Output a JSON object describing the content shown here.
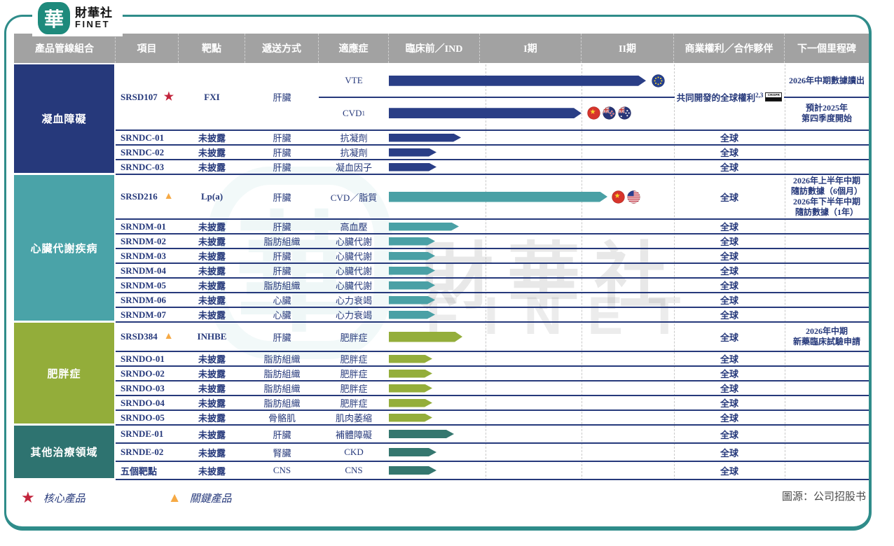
{
  "brand": {
    "logo_char": "華",
    "name_zh": "財華社",
    "name_en": "FINET"
  },
  "watermark": {
    "emblem_char": "華",
    "name_zh": "財華社",
    "name_en": "FINET"
  },
  "columns": [
    "產品管線組合",
    "項目",
    "靶點",
    "遞送方式",
    "適應症",
    "臨床前／IND",
    "I期",
    "II期",
    "商業權利／合作夥伴",
    "下一個里程碑"
  ],
  "colors": {
    "navy": "#26397b",
    "navy_arrow": "#2a3e86",
    "teal": "#4aa3a8",
    "teal_arrow": "#4aa0a5",
    "olive": "#93ad3a",
    "olive_arrow": "#94ae3b",
    "dark_teal": "#2e7370",
    "dark_teal_arrow": "#35776f",
    "header_gray": "#a2a2a2",
    "frame_teal": "#2f8c8a",
    "star_red": "#c2243c",
    "triangle_orange": "#f6a944"
  },
  "groups": [
    {
      "name": "凝血障礙",
      "color": "#26397b",
      "arrow_color": "#2a3e86",
      "rows": [
        {
          "type": "double",
          "project": "SRSD107",
          "marker": "star",
          "target": "FXI",
          "delivery": "肝臟",
          "subrows": [
            {
              "indication": "VTE",
              "sup": "",
              "arrow_len": 367,
              "flags": [
                "eu"
              ]
            },
            {
              "indication": "CVD",
              "sup": "1",
              "arrow_len": 275,
              "flags": [
                "cn",
                "nz",
                "au"
              ]
            }
          ],
          "rights": "共同開發的全球權利",
          "rights_sup": "2,3",
          "rights_logo": "CRISPR",
          "milestone_top": "2026年中期數據讀出",
          "milestone_bottom": "預計2025年\n第四季度開始"
        },
        {
          "type": "std",
          "project": "SRNDC-01",
          "marker": "",
          "target": "未披露",
          "delivery": "肝臟",
          "indication": "抗凝劑",
          "arrow_len": 103,
          "flags": [],
          "rights": "全球",
          "milestone": ""
        },
        {
          "type": "std",
          "project": "SRNDC-02",
          "marker": "",
          "target": "未披露",
          "delivery": "肝臟",
          "indication": "抗凝劑",
          "arrow_len": 68,
          "flags": [],
          "rights": "全球",
          "milestone": ""
        },
        {
          "type": "std",
          "project": "SRNDC-03",
          "marker": "",
          "target": "未披露",
          "delivery": "肝臟",
          "indication": "凝血因子",
          "arrow_len": 68,
          "flags": [],
          "rights": "全球",
          "milestone": ""
        }
      ]
    },
    {
      "name": "心臟代謝疾病",
      "color": "#4aa3a8",
      "arrow_color": "#4aa0a5",
      "rows": [
        {
          "type": "feature",
          "project": "SRSD216",
          "marker": "triangle",
          "target": "Lp(a)",
          "delivery": "肝臟",
          "indication": "CVD／脂質",
          "arrow_len": 312,
          "flags": [
            "cn",
            "us"
          ],
          "rights": "全球",
          "milestone": "2026年上半年中期\n隨訪數據（6個月）\n2026年下半年中期\n隨訪數據（1年）"
        },
        {
          "type": "std",
          "project": "SRNDM-01",
          "marker": "",
          "target": "未披露",
          "delivery": "肝臟",
          "indication": "高血壓",
          "arrow_len": 100,
          "flags": [],
          "rights": "全球",
          "milestone": ""
        },
        {
          "type": "std",
          "project": "SRNDM-02",
          "marker": "",
          "target": "未披露",
          "delivery": "脂肪組織",
          "indication": "心臟代謝",
          "arrow_len": 66,
          "flags": [],
          "rights": "全球",
          "milestone": ""
        },
        {
          "type": "std",
          "project": "SRNDM-03",
          "marker": "",
          "target": "未披露",
          "delivery": "肝臟",
          "indication": "心臟代謝",
          "arrow_len": 66,
          "flags": [],
          "rights": "全球",
          "milestone": ""
        },
        {
          "type": "std",
          "project": "SRNDM-04",
          "marker": "",
          "target": "未披露",
          "delivery": "肝臟",
          "indication": "心臟代謝",
          "arrow_len": 66,
          "flags": [],
          "rights": "全球",
          "milestone": ""
        },
        {
          "type": "std",
          "project": "SRNDM-05",
          "marker": "",
          "target": "未披露",
          "delivery": "脂肪組織",
          "indication": "心臟代謝",
          "arrow_len": 66,
          "flags": [],
          "rights": "全球",
          "milestone": ""
        },
        {
          "type": "std",
          "project": "SRNDM-06",
          "marker": "",
          "target": "未披露",
          "delivery": "心臟",
          "indication": "心力衰竭",
          "arrow_len": 66,
          "flags": [],
          "rights": "全球",
          "milestone": ""
        },
        {
          "type": "std",
          "project": "SRNDM-07",
          "marker": "",
          "target": "未披露",
          "delivery": "心臟",
          "indication": "心力衰竭",
          "arrow_len": 66,
          "flags": [],
          "rights": "全球",
          "milestone": ""
        }
      ]
    },
    {
      "name": "肥胖症",
      "color": "#93ad3a",
      "arrow_color": "#94ae3b",
      "rows": [
        {
          "type": "feature-sm",
          "project": "SRSD384",
          "marker": "triangle",
          "target": "INHBE",
          "delivery": "肝臟",
          "indication": "肥胖症",
          "arrow_len": 105,
          "flags": [],
          "rights": "全球",
          "milestone": "2026年中期\n新藥臨床試驗申請"
        },
        {
          "type": "std",
          "project": "SRNDO-01",
          "marker": "",
          "target": "未披露",
          "delivery": "脂肪組織",
          "indication": "肥胖症",
          "arrow_len": 62,
          "flags": [],
          "rights": "全球",
          "milestone": ""
        },
        {
          "type": "std",
          "project": "SRNDO-02",
          "marker": "",
          "target": "未披露",
          "delivery": "脂肪組織",
          "indication": "肥胖症",
          "arrow_len": 62,
          "flags": [],
          "rights": "全球",
          "milestone": ""
        },
        {
          "type": "std",
          "project": "SRNDO-03",
          "marker": "",
          "target": "未披露",
          "delivery": "脂肪組織",
          "indication": "肥胖症",
          "arrow_len": 62,
          "flags": [],
          "rights": "全球",
          "milestone": ""
        },
        {
          "type": "std",
          "project": "SRNDO-04",
          "marker": "",
          "target": "未披露",
          "delivery": "脂肪組織",
          "indication": "肥胖症",
          "arrow_len": 62,
          "flags": [],
          "rights": "全球",
          "milestone": ""
        },
        {
          "type": "std",
          "project": "SRNDO-05",
          "marker": "",
          "target": "未披露",
          "delivery": "骨骼肌",
          "indication": "肌肉萎縮",
          "arrow_len": 62,
          "flags": [],
          "rights": "全球",
          "milestone": ""
        }
      ]
    },
    {
      "name": "其他治療領域",
      "color": "#2e7370",
      "arrow_color": "#35776f",
      "rows": [
        {
          "type": "std-md",
          "project": "SRNDE-01",
          "marker": "",
          "target": "未披露",
          "delivery": "肝臟",
          "indication": "補體障礙",
          "arrow_len": 93,
          "flags": [],
          "rights": "全球",
          "milestone": ""
        },
        {
          "type": "std-md",
          "project": "SRNDE-02",
          "marker": "",
          "target": "未披露",
          "delivery": "腎臟",
          "indication": "CKD",
          "arrow_len": 68,
          "flags": [],
          "rights": "全球",
          "milestone": ""
        },
        {
          "type": "std-md",
          "project": "五個靶點",
          "marker": "",
          "target": "未披露",
          "delivery": "CNS",
          "indication": "CNS",
          "arrow_len": 68,
          "flags": [],
          "rights": "全球",
          "milestone": ""
        }
      ]
    }
  ],
  "legend": [
    {
      "symbol": "star",
      "label": "核心產品"
    },
    {
      "symbol": "triangle",
      "label": "關鍵產品"
    }
  ],
  "source": "圖源：公司招股书"
}
